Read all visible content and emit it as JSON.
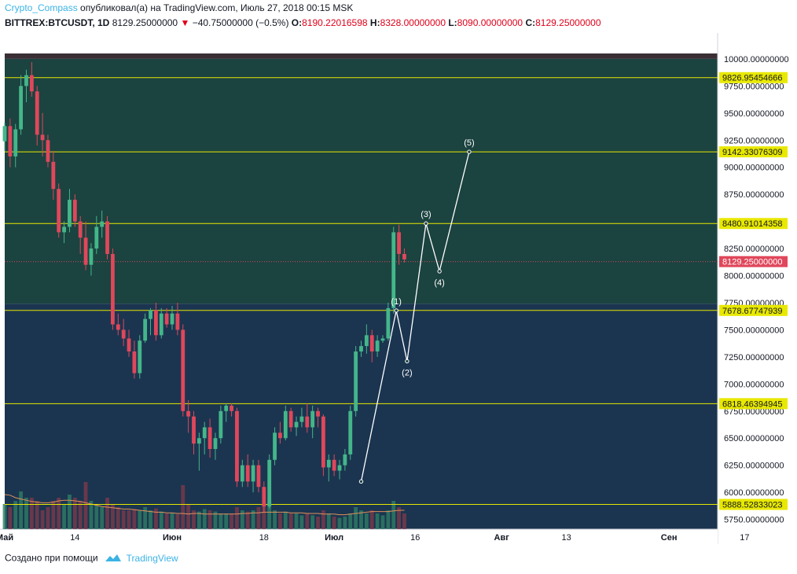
{
  "header": {
    "author": "Crypto_Compass",
    "published": "опубликовал(а) на TradingView.com, Июль 27, 2018 00:15 MSK"
  },
  "ohlc": {
    "symbol": "BITTREX:BTCUSDT, 1D",
    "last": "8129.25000000",
    "change": "−40.75000000 (−0.5%)",
    "o_label": "O:",
    "o": "8190.22016598",
    "h_label": "H:",
    "h": "8328.00000000",
    "l_label": "L:",
    "l": "8090.00000000",
    "c_label": "C:",
    "c": "8129.25000000"
  },
  "footer": {
    "created": "Создано при помощи",
    "brand": "TradingView"
  },
  "colors": {
    "up": "#44b68a",
    "down": "#e0475b",
    "vol_up": "#2e7d64",
    "vol_down": "#7d3a4a",
    "hline": "#e8e800",
    "wave": "#ffffff",
    "ma": "#e0905a",
    "zone_top": "#3a2f35",
    "zone_mid": "#1b4340",
    "zone_low": "#1b3550",
    "price_badge": "#e0475b"
  },
  "chart_data": {
    "type": "candlestick",
    "yrange": [
      5660,
      10050
    ],
    "y_ticks": [
      5750,
      6000,
      6250,
      6500,
      6750,
      7000,
      7250,
      7500,
      7750,
      8000,
      8250,
      8500,
      8750,
      9000,
      9250,
      9500,
      9750,
      10000
    ],
    "y_tick_decimals": 8,
    "x_range": [
      0,
      132
    ],
    "x_labels": [
      {
        "text": "Май",
        "day": 0,
        "bold": true
      },
      {
        "text": "14",
        "day": 13,
        "bold": false
      },
      {
        "text": "Июн",
        "day": 31,
        "bold": true
      },
      {
        "text": "18",
        "day": 48,
        "bold": false
      },
      {
        "text": "Июл",
        "day": 61,
        "bold": true
      },
      {
        "text": "16",
        "day": 76,
        "bold": false
      },
      {
        "text": "Авг",
        "day": 92,
        "bold": true
      },
      {
        "text": "13",
        "day": 104,
        "bold": false
      },
      {
        "text": "Сен",
        "day": 123,
        "bold": true
      },
      {
        "text": "17",
        "day": 137,
        "bold": false
      }
    ],
    "zones": [
      {
        "from": 10050,
        "to": 10000,
        "color": "zone_top"
      },
      {
        "from": 10000,
        "to": 7740,
        "color": "zone_mid"
      },
      {
        "from": 7740,
        "to": 5660,
        "color": "zone_low"
      }
    ],
    "horizontal_levels": [
      9826.95454666,
      9142.33076309,
      8480.91014358,
      7678.67747939,
      6818.46394945,
      5888.52833023
    ],
    "horizontal_level_labels": [
      "9826.95454666",
      "9142.33076309",
      "8480.91014358",
      "7678.67747939",
      "6818.46394945",
      "5888.52833023"
    ],
    "current_price": 8129.25,
    "current_price_label": "8129.25000000",
    "candles": [
      [
        9240,
        9410,
        9150,
        9380
      ],
      [
        9380,
        9450,
        9000,
        9100
      ],
      [
        9100,
        9400,
        9000,
        9350
      ],
      [
        9350,
        9850,
        9300,
        9750
      ],
      [
        9750,
        9900,
        9600,
        9850
      ],
      [
        9850,
        9970,
        9650,
        9700
      ],
      [
        9700,
        9750,
        9200,
        9300
      ],
      [
        9300,
        9500,
        9100,
        9250
      ],
      [
        9250,
        9300,
        9000,
        9050
      ],
      [
        9050,
        9150,
        8700,
        8800
      ],
      [
        8800,
        8850,
        8350,
        8400
      ],
      [
        8400,
        8500,
        8300,
        8450
      ],
      [
        8450,
        8800,
        8400,
        8700
      ],
      [
        8700,
        8750,
        8450,
        8500
      ],
      [
        8500,
        8550,
        8200,
        8350
      ],
      [
        8350,
        8500,
        8050,
        8100
      ],
      [
        8100,
        8300,
        8000,
        8250
      ],
      [
        8250,
        8550,
        8200,
        8450
      ],
      [
        8450,
        8600,
        8350,
        8500
      ],
      [
        8500,
        8550,
        8150,
        8200
      ],
      [
        8200,
        8250,
        7500,
        7550
      ],
      [
        7550,
        7650,
        7450,
        7500
      ],
      [
        7500,
        7600,
        7350,
        7420
      ],
      [
        7420,
        7500,
        7250,
        7300
      ],
      [
        7300,
        7400,
        7050,
        7100
      ],
      [
        7100,
        7450,
        7050,
        7400
      ],
      [
        7400,
        7650,
        7380,
        7600
      ],
      [
        7600,
        7700,
        7450,
        7680
      ],
      [
        7680,
        7750,
        7400,
        7450
      ],
      [
        7450,
        7700,
        7420,
        7650
      ],
      [
        7650,
        7700,
        7520,
        7550
      ],
      [
        7550,
        7720,
        7500,
        7650
      ],
      [
        7650,
        7750,
        7450,
        7500
      ],
      [
        7500,
        7550,
        6700,
        6750
      ],
      [
        6750,
        6850,
        6550,
        6700
      ],
      [
        6700,
        6750,
        6350,
        6450
      ],
      [
        6450,
        6550,
        6200,
        6500
      ],
      [
        6500,
        6650,
        6350,
        6600
      ],
      [
        6600,
        6680,
        6320,
        6400
      ],
      [
        6400,
        6550,
        6300,
        6500
      ],
      [
        6500,
        6800,
        6450,
        6750
      ],
      [
        6750,
        6820,
        6650,
        6800
      ],
      [
        6800,
        6820,
        6700,
        6750
      ],
      [
        6750,
        6780,
        6050,
        6100
      ],
      [
        6100,
        6300,
        6050,
        6250
      ],
      [
        6250,
        6350,
        6050,
        6100
      ],
      [
        6100,
        6300,
        6000,
        6250
      ],
      [
        6250,
        6300,
        6000,
        6050
      ],
      [
        6050,
        6100,
        5820,
        5870
      ],
      [
        5870,
        6350,
        5850,
        6300
      ],
      [
        6300,
        6600,
        6250,
        6550
      ],
      [
        6550,
        6650,
        6450,
        6500
      ],
      [
        6500,
        6800,
        6480,
        6750
      ],
      [
        6750,
        6780,
        6560,
        6600
      ],
      [
        6600,
        6700,
        6520,
        6650
      ],
      [
        6650,
        6780,
        6600,
        6700
      ],
      [
        6700,
        6820,
        6550,
        6600
      ],
      [
        6600,
        6800,
        6500,
        6750
      ],
      [
        6750,
        6780,
        6600,
        6700
      ],
      [
        6700,
        6720,
        6150,
        6230
      ],
      [
        6230,
        6350,
        6100,
        6300
      ],
      [
        6300,
        6350,
        6150,
        6200
      ],
      [
        6200,
        6300,
        6120,
        6250
      ],
      [
        6250,
        6400,
        6200,
        6350
      ],
      [
        6350,
        6800,
        6300,
        6750
      ],
      [
        6750,
        7350,
        6700,
        7300
      ],
      [
        7300,
        7400,
        7250,
        7350
      ],
      [
        7350,
        7550,
        7280,
        7450
      ],
      [
        7450,
        7500,
        7200,
        7300
      ],
      [
        7300,
        7450,
        7250,
        7400
      ],
      [
        7400,
        7450,
        7380,
        7420
      ],
      [
        7420,
        7750,
        7400,
        7700
      ],
      [
        7700,
        8450,
        7650,
        8400
      ],
      [
        8400,
        8470,
        8100,
        8200
      ],
      [
        8200,
        8250,
        8120,
        8150
      ]
    ],
    "volume_ma": [
      0.55,
      0.54,
      0.5,
      0.48,
      0.46,
      0.44,
      0.43,
      0.42,
      0.42,
      0.43,
      0.45,
      0.46,
      0.46,
      0.45,
      0.44,
      0.42,
      0.4,
      0.38,
      0.36,
      0.35,
      0.34,
      0.33,
      0.32,
      0.32,
      0.31,
      0.3,
      0.29,
      0.28,
      0.27,
      0.27,
      0.26,
      0.26,
      0.25,
      0.25,
      0.24,
      0.25,
      0.25,
      0.24,
      0.24,
      0.24,
      0.24,
      0.24,
      0.24,
      0.24,
      0.25,
      0.25,
      0.26,
      0.26,
      0.27,
      0.27,
      0.27,
      0.27,
      0.27,
      0.26,
      0.26,
      0.26,
      0.25,
      0.25,
      0.25,
      0.24,
      0.24,
      0.24,
      0.23,
      0.23,
      0.24,
      0.25,
      0.26,
      0.27,
      0.28,
      0.28,
      0.28,
      0.28,
      0.29,
      0.3,
      0.3
    ],
    "volumes": [
      0.4,
      0.35,
      0.45,
      0.6,
      0.5,
      0.5,
      0.45,
      0.3,
      0.35,
      0.45,
      0.5,
      0.4,
      0.55,
      0.5,
      0.45,
      0.75,
      0.45,
      0.4,
      0.35,
      0.5,
      0.4,
      0.35,
      0.3,
      0.3,
      0.32,
      0.3,
      0.35,
      0.3,
      0.33,
      0.28,
      0.25,
      0.26,
      0.24,
      0.7,
      0.4,
      0.3,
      0.28,
      0.32,
      0.3,
      0.28,
      0.25,
      0.25,
      0.25,
      0.35,
      0.3,
      0.28,
      0.3,
      0.35,
      0.4,
      0.45,
      0.3,
      0.25,
      0.28,
      0.25,
      0.25,
      0.22,
      0.25,
      0.22,
      0.2,
      0.3,
      0.25,
      0.2,
      0.18,
      0.2,
      0.25,
      0.35,
      0.3,
      0.25,
      0.3,
      0.25,
      0.22,
      0.3,
      0.45,
      0.35,
      0.25
    ],
    "wave": [
      {
        "day": 66,
        "price": 6100,
        "label": ""
      },
      {
        "day": 72.5,
        "price": 7678,
        "label": "(1)"
      },
      {
        "day": 74.5,
        "price": 7210,
        "label": "(2)"
      },
      {
        "day": 78,
        "price": 8481,
        "label": "(3)"
      },
      {
        "day": 80.5,
        "price": 8040,
        "label": "(4)"
      },
      {
        "day": 86,
        "price": 9142,
        "label": "(5)"
      }
    ]
  }
}
